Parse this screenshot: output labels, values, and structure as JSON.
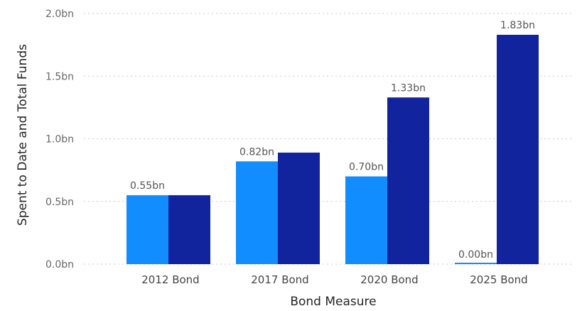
{
  "chart_data": {
    "type": "bar",
    "title": "",
    "xlabel": "Bond Measure",
    "ylabel": "Spent to Date and Total Funds",
    "categories": [
      "2012 Bond",
      "2017 Bond",
      "2020 Bond",
      "2025 Bond"
    ],
    "ylim": [
      0,
      2.0
    ],
    "yticks": [
      0.0,
      0.5,
      1.0,
      1.5,
      2.0
    ],
    "ytick_labels": [
      "0.0bn",
      "0.5bn",
      "1.0bn",
      "1.5bn",
      "2.0bn"
    ],
    "grid": true,
    "legend": "none",
    "series": [
      {
        "color": "#118dff",
        "values": [
          0.55,
          0.82,
          0.7,
          0.0
        ],
        "labels": [
          "0.55bn",
          "0.82bn",
          "0.70bn",
          "0.00bn"
        ]
      },
      {
        "color": "#12239e",
        "values": [
          0.55,
          0.89,
          1.33,
          1.83
        ],
        "labels": [
          "",
          "",
          "1.33bn",
          "1.83bn"
        ]
      }
    ]
  }
}
